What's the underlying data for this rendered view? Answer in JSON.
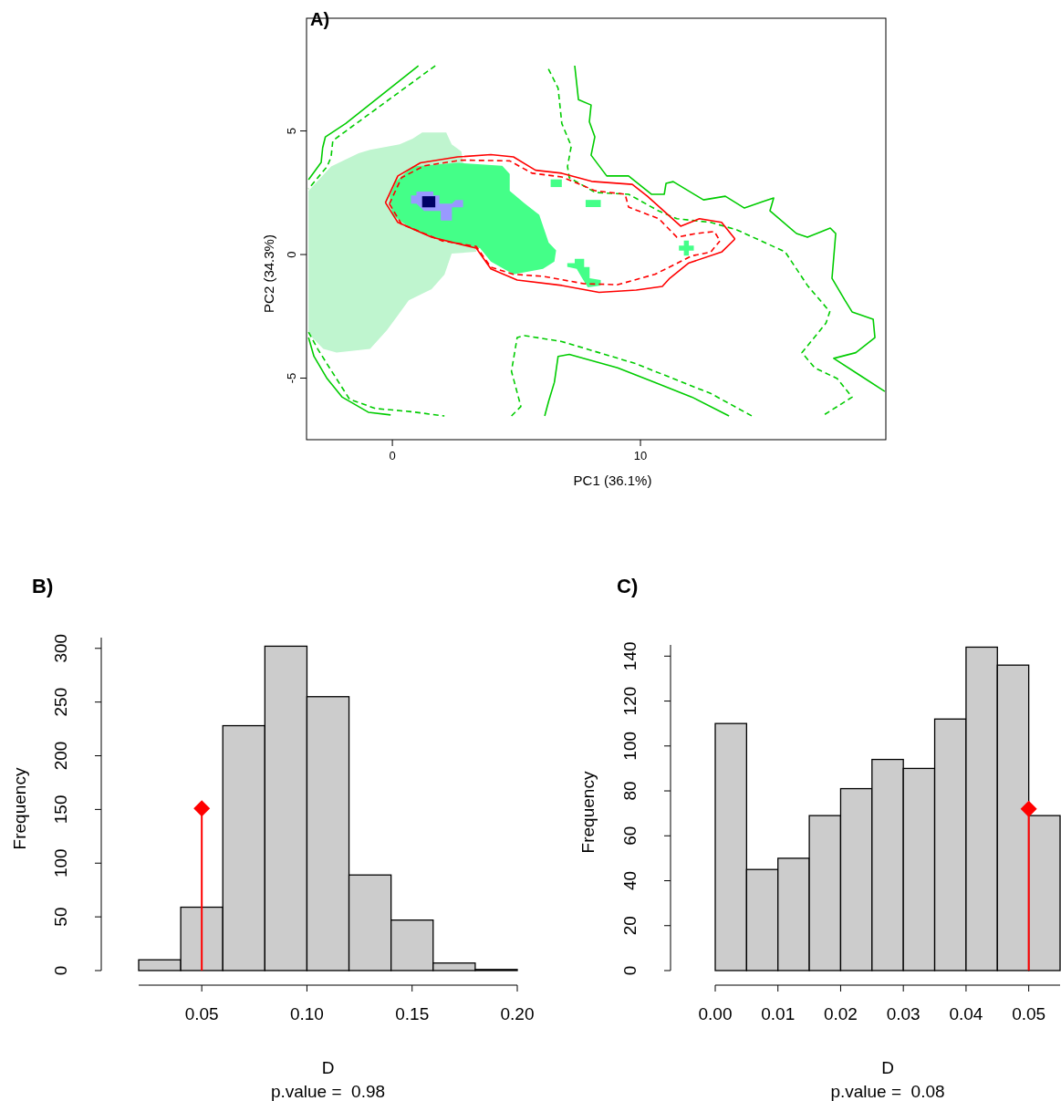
{
  "chart_data": [
    {
      "type": "line",
      "title": "A)",
      "xlabel": "PC1 (36.1%)",
      "ylabel": "PC2 (34.3%)",
      "xlim": [
        -3.46,
        19.89
      ],
      "ylim": [
        -7.49,
        9.56
      ],
      "xticks": [
        0,
        10
      ],
      "yticks": [
        -5,
        0,
        5
      ],
      "series": [
        {
          "type": "area",
          "color": "#bff5cf",
          "x": [
            -3.38,
            -2.47,
            -1.36,
            -0.9,
            0.29,
            0.82,
            1.2,
            2.17,
            2.39,
            2.78,
            3.38,
            2.39,
            2.1,
            1.58,
            0.66,
            0.22,
            -0.22,
            -0.9,
            -2.25,
            -2.78,
            -3.38
          ],
          "values": [
            2.58,
            3.56,
            4.1,
            4.24,
            4.46,
            4.69,
            4.94,
            4.94,
            4.46,
            4.17,
            0.11,
            0.04,
            -0.81,
            -1.4,
            -1.85,
            -2.46,
            -3.06,
            -3.82,
            -3.97,
            -3.82,
            -3.21
          ]
        },
        {
          "type": "area",
          "color": "#44ff88",
          "x": [
            0.82,
            2.63,
            4.43,
            4.73,
            4.73,
            5.33,
            5.92,
            6.3,
            6.6,
            6.53,
            6.07,
            4.88,
            3.97,
            3.53,
            2.32,
            0.82,
            0,
            -0.11,
            0.15
          ],
          "values": [
            3.56,
            3.71,
            3.59,
            3.26,
            2.58,
            2.07,
            1.61,
            0.48,
            0.17,
            -0.28,
            -0.58,
            -0.8,
            -0.28,
            0.26,
            0.48,
            1,
            1.61,
            2.36,
            2.96
          ]
        },
        {
          "type": "area",
          "color": "#44ff88",
          "x": [
            6.38,
            6.83,
            6.83,
            6.38
          ],
          "values": [
            3.04,
            3.04,
            2.73,
            2.73
          ]
        },
        {
          "type": "area",
          "color": "#44ff88",
          "x": [
            7.79,
            8.4,
            8.4,
            7.79
          ],
          "values": [
            2.21,
            2.21,
            1.92,
            1.92
          ]
        },
        {
          "type": "area",
          "color": "#44ff88",
          "x": [
            11.55,
            11.75,
            11.75,
            11.95,
            11.95,
            12.15,
            12.15,
            11.95,
            11.95,
            11.75,
            11.75,
            11.55
          ],
          "values": [
            0.16,
            0.16,
            -0.04,
            -0.04,
            0.16,
            0.16,
            0.36,
            0.36,
            0.56,
            0.56,
            0.36,
            0.36
          ]
        },
        {
          "type": "area",
          "color": "#44ff88",
          "x": [
            7.05,
            7.35,
            7.35,
            7.73,
            7.73,
            7.95,
            7.95,
            8.4,
            8.4,
            7.88,
            7.65,
            7.43,
            7.05
          ],
          "values": [
            -0.35,
            -0.35,
            -0.17,
            -0.17,
            -0.51,
            -0.51,
            -0.96,
            -1.03,
            -1.25,
            -1.33,
            -0.96,
            -0.58,
            -0.5
          ]
        },
        {
          "type": "area",
          "color": "#9999ff",
          "x": [
            0.75,
            0.97,
            0.97,
            1.65,
            1.65,
            1.9,
            1.9,
            2.4,
            2.55,
            2.85,
            2.85,
            2.4,
            2.4,
            1.95,
            1.95,
            1.28,
            0.97,
            0.75
          ],
          "values": [
            2.39,
            2.39,
            2.55,
            2.55,
            2.39,
            2.39,
            2.06,
            2.06,
            2.21,
            2.21,
            1.91,
            1.91,
            1.38,
            1.38,
            1.76,
            1.76,
            2.06,
            2.06
          ]
        },
        {
          "type": "area",
          "color": "#000066",
          "x": [
            1.2,
            1.73,
            1.73,
            1.2
          ],
          "values": [
            2.36,
            2.36,
            1.91,
            1.91
          ]
        },
        {
          "type": "line",
          "color": "#00cc00",
          "line_style": "solid",
          "x": [
            1.05,
            -1.88,
            -2.7,
            -2.81,
            -2.87,
            -3.38
          ],
          "values": [
            7.64,
            5.3,
            4.76,
            4.32,
            3.73,
            3.03
          ]
        },
        {
          "type": "line",
          "color": "#00cc00",
          "line_style": "dashed",
          "x": [
            1.73,
            -1.88,
            -2.4,
            -2.47,
            -2.63,
            -3.38
          ],
          "values": [
            7.64,
            4.99,
            4.61,
            3.95,
            3.56,
            2.66
          ]
        },
        {
          "type": "line",
          "color": "#00cc00",
          "line_style": "solid",
          "x": [
            7.35,
            7.5,
            8.01,
            7.94,
            8.16,
            8.01,
            8.64,
            9.52,
            10.44,
            10.96,
            11.03,
            11.32,
            12.54,
            13.42,
            14.19,
            14.93,
            15.37,
            15.22,
            16.29,
            16.73,
            17.65,
            17.87,
            17.72,
            18.24,
            18.53,
            19.38,
            19.45,
            18.68,
            17.79,
            18.82,
            19.85
          ],
          "values": [
            7.64,
            6.27,
            6.05,
            5.37,
            4.76,
            4.02,
            3.18,
            3.18,
            2.44,
            2.44,
            2.88,
            2.95,
            2.21,
            2.36,
            1.88,
            2.14,
            2.29,
            1.77,
            0.85,
            0.7,
            1.07,
            0.85,
            -0.96,
            -1.85,
            -2.32,
            -2.62,
            -3.36,
            -3.97,
            -4.2,
            -4.87,
            -5.54
          ]
        },
        {
          "type": "line",
          "color": "#00cc00",
          "line_style": "dashed",
          "x": [
            6.29,
            6.68,
            6.83,
            7.21,
            7.06,
            7.13,
            8.18,
            9.52,
            10.74,
            11.47,
            12.83,
            13.88,
            15.83,
            16.73,
            17.63,
            17.48,
            16.51,
            17.02,
            17.93,
            18.53,
            17.33
          ],
          "values": [
            7.51,
            6.73,
            5.3,
            4.39,
            3.56,
            3.11,
            2.51,
            2.44,
            1.76,
            1.45,
            1.3,
            1,
            0.11,
            -1.25,
            -2.31,
            -2.77,
            -3.97,
            -4.58,
            -5.02,
            -5.77,
            -6.53
          ]
        },
        {
          "type": "line",
          "color": "#00cc00",
          "line_style": "solid",
          "x": [
            -3.38,
            -3.16,
            -2.63,
            -2.02,
            -0.97,
            -0.07
          ],
          "values": [
            -3.36,
            -4.12,
            -5.02,
            -5.77,
            -6.38,
            -6.49
          ]
        },
        {
          "type": "line",
          "color": "#00cc00",
          "line_style": "dashed",
          "x": [
            -3.38,
            -3.01,
            -2.63,
            -1.73,
            -0.68,
            0.68,
            2.1
          ],
          "values": [
            -3.14,
            -3.82,
            -4.43,
            -5.85,
            -6.23,
            -6.35,
            -6.53
          ]
        },
        {
          "type": "line",
          "color": "#00cc00",
          "line_style": "solid",
          "x": [
            6.14,
            6.3,
            6.53,
            6.68,
            7.13,
            9.08,
            10.58,
            12.08,
            13.57
          ],
          "values": [
            -6.53,
            -5.93,
            -5.17,
            -4.12,
            -4.04,
            -4.58,
            -5.17,
            -5.77,
            -6.53
          ]
        },
        {
          "type": "line",
          "color": "#00cc00",
          "line_style": "dashed",
          "x": [
            4.8,
            5.18,
            4.8,
            5.03,
            5.33,
            6.83,
            8.33,
            9.83,
            11.32,
            12.83,
            14.49
          ],
          "values": [
            -6.53,
            -6.15,
            -4.72,
            -3.36,
            -3.28,
            -3.52,
            -3.97,
            -4.42,
            -5.02,
            -5.62,
            -6.53
          ]
        },
        {
          "type": "line",
          "color": "#ff0000",
          "line_style": "solid",
          "x": [
            -0.28,
            0.22,
            1.13,
            2.63,
            3.97,
            4.88,
            5.77,
            6.83,
            8.03,
            9.67,
            10.28,
            11.62,
            12.38,
            13.27,
            13.81
          ],
          "values": [
            2.1,
            3.18,
            3.71,
            3.95,
            4.04,
            3.95,
            3.41,
            3.29,
            2.96,
            2.84,
            2.36,
            1.15,
            1.45,
            1.3,
            0.63
          ]
        },
        {
          "type": "line",
          "color": "#ff0000",
          "line_style": "solid",
          "x": [
            -0.28,
            0.22,
            1.58,
            3.38,
            3.97,
            5.03,
            6.83,
            8.33,
            9.83,
            10.88,
            11.18,
            11.93,
            13.27,
            13.81
          ],
          "values": [
            2.1,
            1.3,
            0.7,
            0.26,
            -0.58,
            -1.03,
            -1.25,
            -1.53,
            -1.44,
            -1.29,
            -0.96,
            -0.35,
            0.1,
            0.63
          ]
        },
        {
          "type": "line",
          "color": "#ff0000",
          "line_style": "dashed",
          "x": [
            -0.12,
            0.37,
            1.28,
            2.78,
            4.73,
            5.63,
            6.83,
            8.18,
            9.38,
            9.52,
            10.74,
            11.47,
            12.23,
            12.98,
            13.2
          ],
          "values": [
            2.05,
            3.11,
            3.59,
            3.82,
            3.79,
            3.29,
            3.14,
            2.58,
            2.44,
            1.92,
            1.45,
            0.7,
            0.85,
            0.93,
            0.55
          ]
        },
        {
          "type": "line",
          "color": "#ff0000",
          "line_style": "dashed",
          "x": [
            -0.12,
            0.37,
            2.02,
            3.38,
            3.97,
            4.88,
            6.07,
            7.72,
            9.08,
            10.58,
            12.08,
            12.83,
            13.2
          ],
          "values": [
            2.05,
            1.23,
            0.55,
            0.33,
            -0.51,
            -0.8,
            -0.88,
            -1.18,
            -1.22,
            -0.8,
            -0.05,
            0.1,
            0.55
          ]
        }
      ]
    },
    {
      "type": "histogram",
      "title": "B)",
      "xlabel": "D",
      "ylabel": "Frequency",
      "annotations": [
        "p.value =  0.98"
      ],
      "color": "#cccccc",
      "bins": [
        0.02,
        0.04,
        0.06,
        0.08,
        0.1,
        0.12,
        0.14,
        0.16,
        0.18,
        0.2
      ],
      "values": [
        10,
        59,
        228,
        302,
        255,
        89,
        47,
        7,
        1
      ],
      "xlim": [
        0.02,
        0.2
      ],
      "ylim": [
        0,
        310
      ],
      "xticks": [
        {
          "value": 0.05,
          "label": "0.05"
        },
        {
          "value": 0.1,
          "label": "0.10"
        },
        {
          "value": 0.15,
          "label": "0.15"
        },
        {
          "value": 0.2,
          "label": "0.20"
        }
      ],
      "yticks": [
        0,
        50,
        100,
        150,
        200,
        250,
        300
      ],
      "series": [
        {
          "type": "lollipop",
          "color": "#ff0000",
          "marker": "diamond",
          "x": [
            0.05
          ],
          "values": [
            151
          ]
        }
      ]
    },
    {
      "type": "histogram",
      "title": "C)",
      "xlabel": "D",
      "ylabel": "Frequency",
      "annotations": [
        "p.value =  0.08"
      ],
      "color": "#cccccc",
      "bins": [
        0,
        0.005,
        0.01,
        0.015,
        0.02,
        0.025,
        0.03,
        0.035,
        0.04,
        0.045,
        0.05,
        0.055
      ],
      "values": [
        110,
        45,
        50,
        69,
        81,
        94,
        90,
        112,
        144,
        136,
        69
      ],
      "xlim": [
        0,
        0.055
      ],
      "ylim": [
        0,
        145
      ],
      "xticks": [
        {
          "value": 0,
          "label": "0.00"
        },
        {
          "value": 0.01,
          "label": "0.01"
        },
        {
          "value": 0.02,
          "label": "0.02"
        },
        {
          "value": 0.03,
          "label": "0.03"
        },
        {
          "value": 0.04,
          "label": "0.04"
        },
        {
          "value": 0.05,
          "label": "0.05"
        }
      ],
      "yticks": [
        0,
        20,
        40,
        60,
        80,
        100,
        120,
        140
      ],
      "series": [
        {
          "type": "lollipop",
          "color": "#ff0000",
          "marker": "diamond",
          "x": [
            0.05
          ],
          "values": [
            72
          ]
        }
      ]
    }
  ]
}
